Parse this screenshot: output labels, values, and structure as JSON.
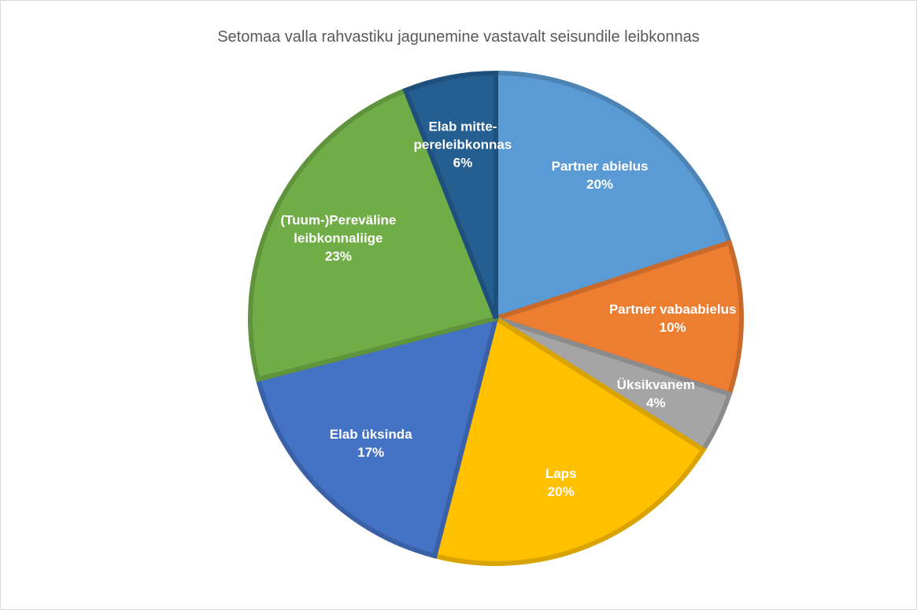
{
  "chart_data": {
    "type": "pie",
    "title": "Setomaa valla rahvastiku jagunemine vastavalt seisundile leibkonnas",
    "categories": [
      "Partner abielus",
      "Partner vabaabielus",
      "Üksikvanem",
      "Laps",
      "Elab üksinda",
      "(Tuum-)Pereväline leibkonnaliige",
      "Elab mitte-pereleibkonnas"
    ],
    "values": [
      20,
      10,
      4,
      20,
      17,
      23,
      6
    ],
    "value_labels": [
      "20%",
      "10%",
      "4%",
      "20%",
      "17%",
      "23%",
      "6%"
    ],
    "colors": [
      "#5b9bd5",
      "#ed7d31",
      "#a5a5a5",
      "#ffc000",
      "#4472c4",
      "#70ad47",
      "#255e91"
    ]
  }
}
